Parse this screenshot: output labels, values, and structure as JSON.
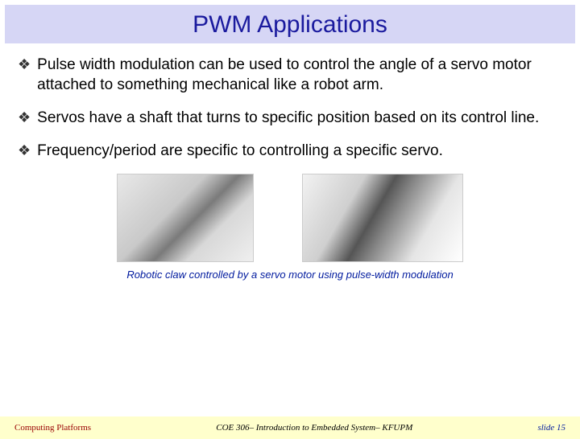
{
  "title": "PWM Applications",
  "bullets": [
    "Pulse width modulation can be used to control the angle of a servo motor attached to something mechanical like a robot arm.",
    "Servos have a shaft that turns to specific position based on its control line.",
    "Frequency/period are specific to controlling a specific servo."
  ],
  "caption": "Robotic claw controlled by a servo motor using pulse-width modulation",
  "footer": {
    "left": "Computing Platforms",
    "center": "COE 306– Introduction to Embedded System– KFUPM",
    "right": "slide 15"
  },
  "colors": {
    "title_bg": "#d6d6f5",
    "title_text": "#1a1a9e",
    "caption_text": "#001a9e",
    "footer_bg": "#ffffcc",
    "footer_left": "#990000",
    "footer_right": "#001a9e"
  }
}
